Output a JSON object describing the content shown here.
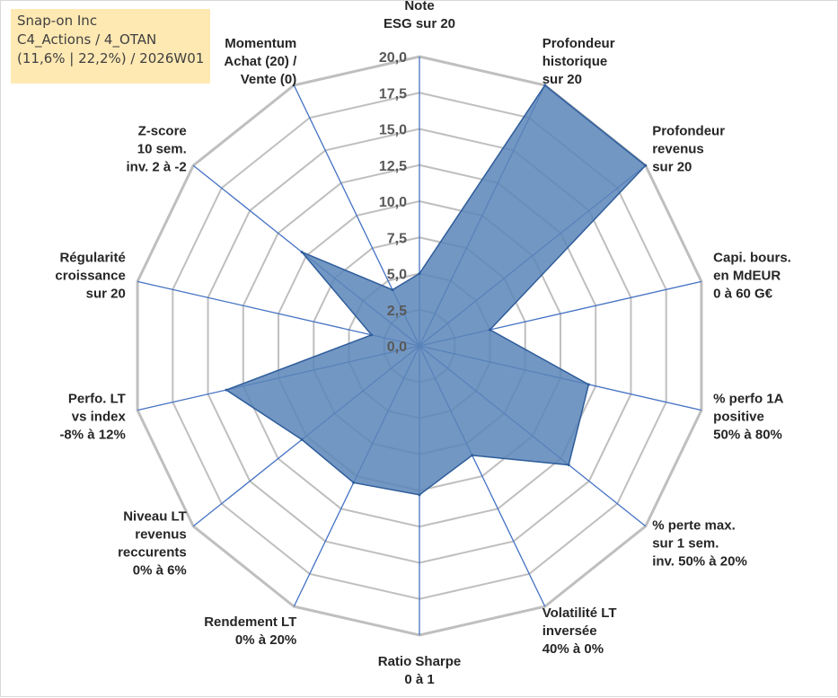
{
  "info": {
    "line1": "Snap-on Inc",
    "line2": "C4_Actions / 4_OTAN",
    "line3": "(11,6% | 22,2%) / 2026W01"
  },
  "colors": {
    "fill": "#5b85b8",
    "stroke": "#2e5d9b",
    "spoke": "#4472c4",
    "grid": "#bfbfbf",
    "info_bg": "#ffe9b3"
  },
  "chart_data": {
    "type": "radar",
    "rmin": 0,
    "rmax": 20,
    "tick_step": 2.5,
    "tick_labels": [
      "0,0",
      "2,5",
      "5,0",
      "7,5",
      "10,0",
      "12,5",
      "15,0",
      "17,5",
      "20,0"
    ],
    "axes": [
      {
        "lines": [
          "Note",
          "ESG sur 20"
        ],
        "value": 5.0
      },
      {
        "lines": [
          "Profondeur",
          "historique",
          "sur 20"
        ],
        "value": 20.0
      },
      {
        "lines": [
          "Profondeur",
          "revenus",
          "sur 20"
        ],
        "value": 20.0
      },
      {
        "lines": [
          "Capi. bours.",
          "en MdEUR",
          "0 à 60 G€"
        ],
        "value": 5.0
      },
      {
        "lines": [
          "% perfo 1A",
          "positive",
          "50% à 80%"
        ],
        "value": 12.0
      },
      {
        "lines": [
          "% perte max.",
          "sur 1 sem.",
          "inv. 50% à 20%"
        ],
        "value": 13.2
      },
      {
        "lines": [
          "Volatilité LT",
          "inversée",
          "40% à 0%"
        ],
        "value": 8.4
      },
      {
        "lines": [
          "Ratio Sharpe",
          "0 à 1"
        ],
        "value": 10.3
      },
      {
        "lines": [
          "Rendement LT",
          "0% à 20%"
        ],
        "value": 10.5
      },
      {
        "lines": [
          "Niveau LT",
          "revenus",
          "reccurents",
          "0% à 6%"
        ],
        "value": 10.4
      },
      {
        "lines": [
          "Perfo. LT",
          "vs index",
          "-8% à 12%"
        ],
        "value": 13.7
      },
      {
        "lines": [
          "Régularité",
          "croissance",
          "sur 20"
        ],
        "value": 3.4
      },
      {
        "lines": [
          "Z-score",
          "10 sem.",
          "inv. 2 à -2"
        ],
        "value": 10.4
      },
      {
        "lines": [
          "Momentum",
          "Achat (20) /",
          "Vente (0)"
        ],
        "value": 4.3
      }
    ]
  }
}
